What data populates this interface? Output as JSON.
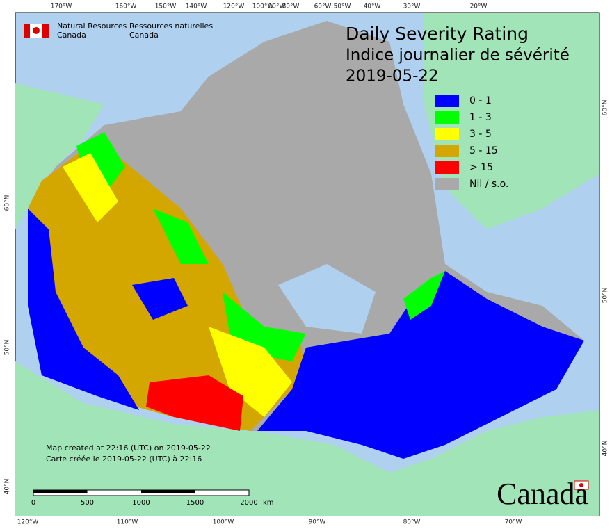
{
  "header": {
    "agency_en": [
      "Natural Resources",
      "Canada"
    ],
    "agency_fr": [
      "Ressources naturelles",
      "Canada"
    ]
  },
  "title": {
    "lines": [
      "Daily Severity Rating",
      "Indice journalier de sévérité",
      "2019-05-22"
    ]
  },
  "legend": {
    "items": [
      {
        "label": "0 - 1",
        "color": "#0000ff"
      },
      {
        "label": "1 - 3",
        "color": "#00ff00"
      },
      {
        "label": "3 - 5",
        "color": "#ffff00"
      },
      {
        "label": "5 - 15",
        "color": "#d4a600"
      },
      {
        "label": "> 15",
        "color": "#ff0000"
      },
      {
        "label": "Nil / s.o.",
        "color": "#a9a9a9"
      }
    ]
  },
  "footer": {
    "lines": [
      "Map created at 22:16 (UTC) on 2019-05-22",
      "Carte créée le 2019-05-22 (UTC) à 22:16"
    ]
  },
  "scale_bar": {
    "ticks": [
      0,
      500,
      1000,
      1500,
      2000
    ],
    "unit": "km"
  },
  "graticule": {
    "top": [
      "170°W",
      "160°W",
      "150°W",
      "140°W",
      "120°W",
      "100°W",
      "90°W",
      "80°W",
      "60°W",
      "50°W",
      "40°W",
      "30°W",
      "20°W"
    ],
    "bottom": [
      "120°W",
      "110°W",
      "100°W",
      "90°W",
      "80°W",
      "70°W"
    ],
    "left": [
      "60°N",
      "50°N",
      "40°N"
    ],
    "right": [
      "60°N",
      "50°N",
      "40°N"
    ]
  },
  "wordmark": "Canada"
}
